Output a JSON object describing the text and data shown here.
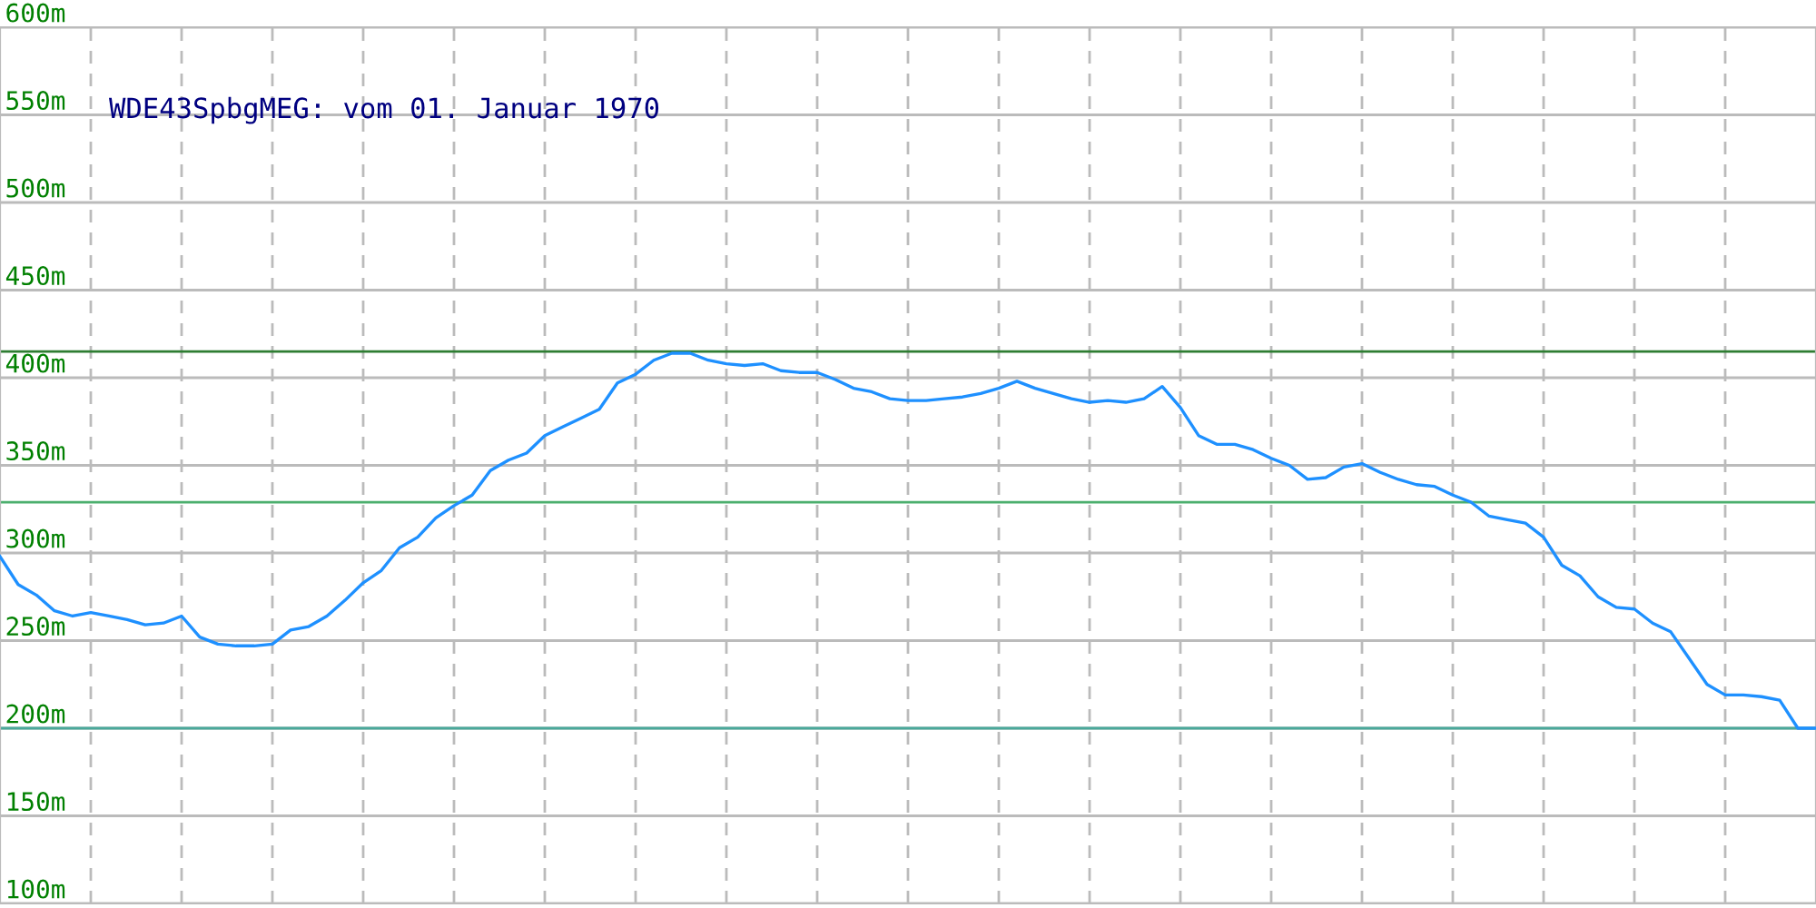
{
  "chart_data": {
    "type": "line",
    "title": "WDE43SpbgMEG: vom 01. Januar 1970",
    "categories": [
      null,
      null,
      null,
      null,
      null,
      null,
      null,
      null,
      null,
      null,
      null,
      null,
      null,
      null,
      null,
      null,
      null,
      null,
      null,
      null,
      null,
      null,
      null,
      null,
      null,
      null,
      null,
      null,
      null,
      null,
      null,
      null,
      null,
      null,
      null,
      null,
      null,
      null,
      null,
      null,
      null,
      null,
      null,
      null,
      null,
      null,
      null,
      null,
      null,
      null,
      null,
      null,
      null,
      null,
      null,
      null,
      null,
      null,
      null,
      null,
      null,
      null,
      null,
      null,
      null,
      null,
      null,
      null,
      null,
      null,
      null,
      null,
      null,
      null,
      null,
      null,
      null,
      null,
      null,
      null,
      null,
      null,
      null,
      null,
      null,
      null,
      null,
      null,
      null,
      null,
      null,
      null,
      null,
      null,
      null,
      null,
      null,
      null,
      null,
      null,
      null
    ],
    "series": [
      {
        "color": "#1e90ff",
        "values": [
          298,
          282,
          276,
          267,
          264,
          266,
          264,
          262,
          259,
          260,
          264,
          252,
          248,
          247,
          247,
          248,
          256,
          258,
          264,
          273,
          283,
          290,
          303,
          309,
          320,
          327,
          333,
          347,
          353,
          357,
          367,
          372,
          377,
          382,
          397,
          402,
          410,
          414,
          414,
          410,
          408,
          407,
          408,
          404,
          403,
          403,
          399,
          394,
          392,
          388,
          387,
          387,
          388,
          389,
          391,
          394,
          398,
          394,
          391,
          388,
          386,
          387,
          386,
          388,
          395,
          383,
          367,
          362,
          362,
          359,
          354,
          350,
          342,
          343,
          349,
          351,
          346,
          342,
          339,
          338,
          333,
          329,
          321,
          319,
          317,
          309,
          293,
          287,
          275,
          269,
          268,
          260,
          255,
          240,
          225,
          219,
          219,
          218,
          216,
          200,
          200
        ]
      }
    ],
    "ylim": [
      100,
      600
    ],
    "yticks": [
      {
        "value": 100,
        "label": "100m"
      },
      {
        "value": 150,
        "label": "150m"
      },
      {
        "value": 200,
        "label": "200m"
      },
      {
        "value": 250,
        "label": "250m"
      },
      {
        "value": 300,
        "label": "300m"
      },
      {
        "value": 350,
        "label": "350m"
      },
      {
        "value": 400,
        "label": "400m"
      },
      {
        "value": 450,
        "label": "450m"
      },
      {
        "value": 500,
        "label": "500m"
      },
      {
        "value": 550,
        "label": "550m"
      },
      {
        "value": 600,
        "label": "600m"
      }
    ],
    "tick_labels": "y",
    "grid": true,
    "ref_lines": [
      {
        "axis": "y",
        "value": 415,
        "color": "#2e7d32"
      },
      {
        "axis": "y",
        "value": 329,
        "color": "#4caf6e"
      },
      {
        "axis": "y",
        "value": 200,
        "color": "#4aa89a"
      }
    ]
  }
}
